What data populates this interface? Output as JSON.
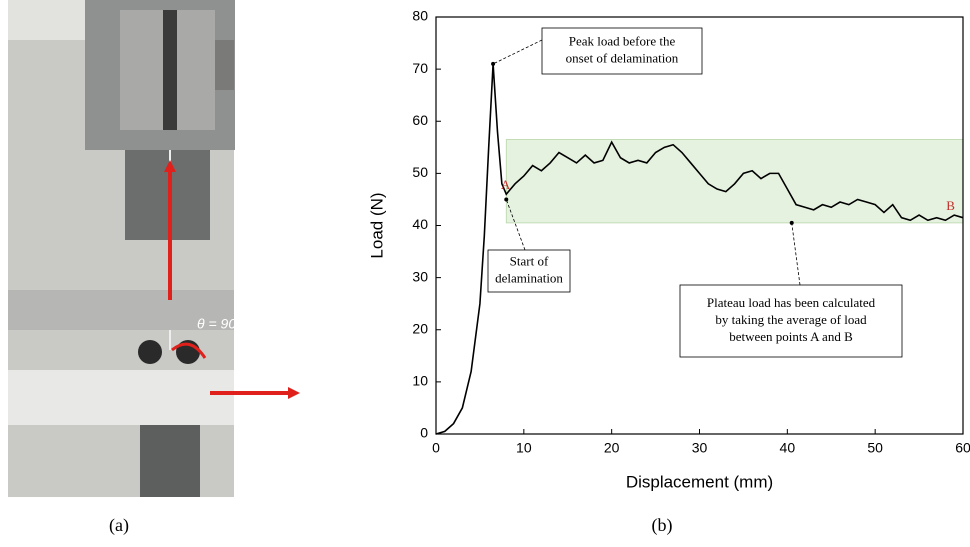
{
  "photo": {
    "label": "θ = 90°"
  },
  "captions": [
    "(a)",
    "(b)"
  ],
  "chart_data": {
    "type": "line",
    "x_label": "Displacement (mm)",
    "y_label": "Load (N)",
    "xlim": [
      0,
      60
    ],
    "xticks": [
      0,
      10,
      20,
      30,
      40,
      50,
      60
    ],
    "ylim": [
      0,
      80
    ],
    "yticks": [
      0,
      10,
      20,
      30,
      40,
      50,
      60,
      70,
      80
    ],
    "x": [
      0,
      1,
      2,
      3,
      4,
      5,
      5.5,
      6,
      6.5,
      7,
      7.5,
      8,
      8.5,
      9,
      10,
      11,
      12,
      13,
      14,
      15,
      16,
      17,
      18,
      19,
      20,
      21,
      22,
      23,
      24,
      25,
      26,
      27,
      28,
      29,
      30,
      31,
      32,
      33,
      34,
      35,
      36,
      37,
      38,
      39,
      40,
      41,
      42,
      43,
      44,
      45,
      46,
      47,
      48,
      49,
      50,
      51,
      52,
      53,
      54,
      55,
      56,
      57,
      58,
      59,
      60
    ],
    "series": [
      {
        "color": "#000000",
        "values": [
          0,
          0.5,
          2,
          5,
          12,
          25,
          38,
          55,
          71,
          58,
          48,
          46,
          47,
          48,
          49.5,
          51.5,
          50.5,
          52,
          54,
          53,
          52,
          53.5,
          52,
          52.5,
          56,
          53,
          52,
          52.5,
          52,
          54,
          55,
          55.5,
          54,
          52,
          50,
          48,
          47,
          46.5,
          48,
          50,
          50.5,
          49,
          50,
          50,
          47,
          44,
          43.5,
          43,
          44,
          43.5,
          44.5,
          44,
          45,
          44.5,
          44,
          42.5,
          44,
          41.5,
          41,
          42,
          41,
          41.5,
          41,
          42,
          41.5
        ]
      }
    ],
    "band": {
      "x": [
        8,
        60
      ],
      "y": [
        40.5,
        56.5
      ],
      "color": "#e6f2e0"
    },
    "points": [
      {
        "label": "A",
        "x": 8.3,
        "y": 46
      },
      {
        "label": "B",
        "x": 59,
        "y": 42
      }
    ],
    "annotations": [
      {
        "lines": [
          "Peak load before the",
          "onset of delamination"
        ],
        "x": 6.5,
        "y": 71
      },
      {
        "lines": [
          "Start of",
          "delamination"
        ],
        "x": 8,
        "y": 45
      },
      {
        "lines": [
          "Plateau load has been calculated",
          "by taking the average of load",
          "between points A and B"
        ],
        "x": 40.5,
        "y": 40.5
      }
    ]
  }
}
